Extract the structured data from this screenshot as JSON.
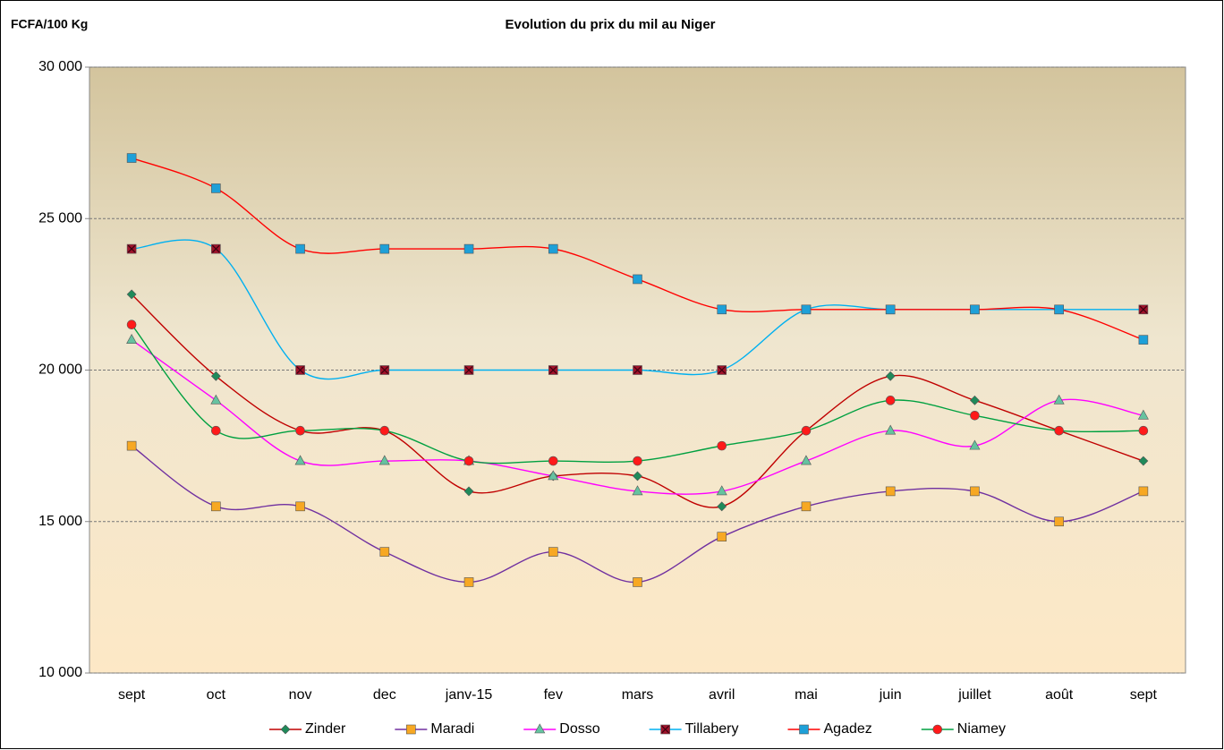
{
  "chart_data": {
    "type": "line",
    "title": "Evolution du prix du mil au Niger",
    "y_label": "FCFA/100 Kg",
    "categories": [
      "sept",
      "oct",
      "nov",
      "dec",
      "janv-15",
      "fev",
      "mars",
      "avril",
      "mai",
      "juin",
      "juillet",
      "août",
      "sept"
    ],
    "ylim": [
      10000,
      30000
    ],
    "yticks": [
      {
        "value": 10000,
        "label": "10 000"
      },
      {
        "value": 15000,
        "label": "15 000"
      },
      {
        "value": 20000,
        "label": "20 000"
      },
      {
        "value": 25000,
        "label": "25 000"
      },
      {
        "value": 30000,
        "label": "30 000"
      }
    ],
    "grid": true,
    "smooth": true,
    "legend": "bottom",
    "series": [
      {
        "name": "Zinder",
        "color": "#c00000",
        "marker_color": "#1f8a5a",
        "marker": "diamond",
        "values": [
          22500,
          19800,
          18000,
          18000,
          16000,
          16500,
          16500,
          15500,
          18000,
          19800,
          19000,
          18000,
          17000
        ]
      },
      {
        "name": "Maradi",
        "color": "#7030a0",
        "marker_color": "#f7a823",
        "marker": "square",
        "values": [
          17500,
          15500,
          15500,
          14000,
          13000,
          14000,
          13000,
          14500,
          15500,
          16000,
          16000,
          15000,
          16000
        ]
      },
      {
        "name": "Dosso",
        "color": "#ff00ff",
        "marker_color": "#66c2a0",
        "marker": "triangle",
        "values": [
          21000,
          19000,
          17000,
          17000,
          17000,
          16500,
          16000,
          16000,
          17000,
          18000,
          17500,
          19000,
          18500
        ]
      },
      {
        "name": "Tillabery",
        "color": "#00b0f0",
        "marker_color": "#a0122a",
        "marker": "square-x",
        "values": [
          24000,
          24000,
          20000,
          20000,
          20000,
          20000,
          20000,
          20000,
          22000,
          22000,
          22000,
          22000,
          22000
        ]
      },
      {
        "name": "Agadez",
        "color": "#ff0000",
        "marker_color": "#1ea0d8",
        "marker": "square",
        "values": [
          27000,
          26000,
          24000,
          24000,
          24000,
          24000,
          23000,
          22000,
          22000,
          22000,
          22000,
          22000,
          21000
        ]
      },
      {
        "name": "Niamey",
        "color": "#00a040",
        "marker_color": "#ff1a1a",
        "marker": "circle",
        "values": [
          21500,
          18000,
          18000,
          18000,
          17000,
          17000,
          17000,
          17500,
          18000,
          19000,
          18500,
          18000,
          18000
        ]
      }
    ]
  }
}
